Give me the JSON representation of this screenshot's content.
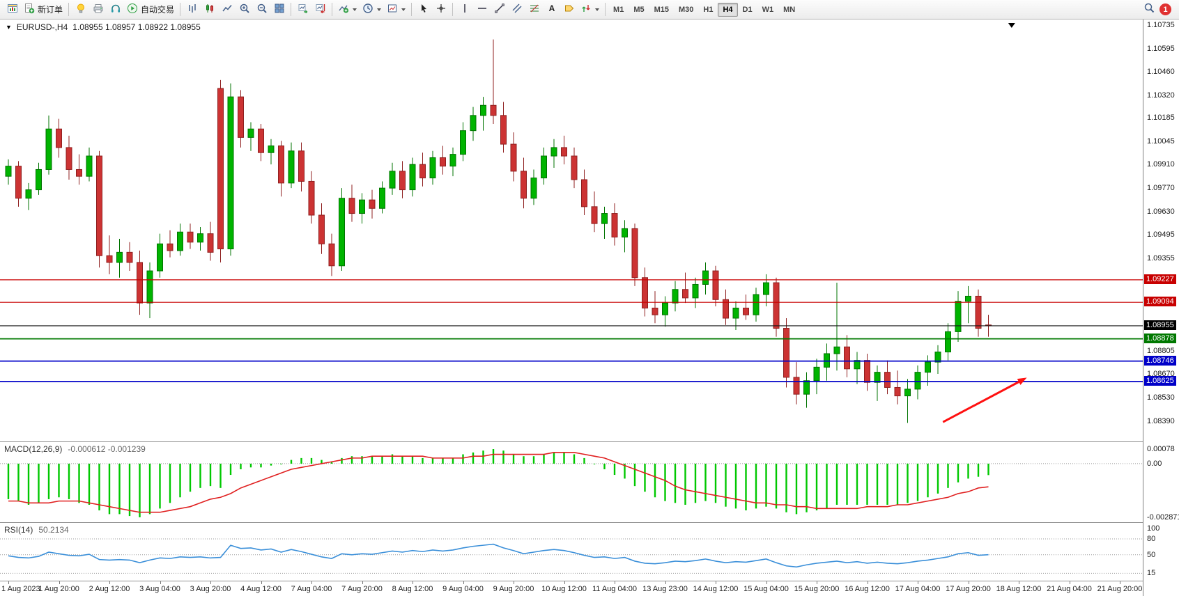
{
  "toolbar": {
    "new_order_label": "新订单",
    "autotrade_label": "自动交易",
    "timeframes": [
      "M1",
      "M5",
      "M15",
      "M30",
      "H1",
      "H4",
      "D1",
      "W1",
      "MN"
    ],
    "active_timeframe": "H4",
    "notification_count": "1"
  },
  "icons": {
    "collapse_triangle": "▼"
  },
  "chart_header": {
    "symbol": "EURUSD-,H4",
    "ohlc": "1.08955 1.08957 1.08922 1.08955"
  },
  "chart_data": [
    {
      "type": "candlestick",
      "title": "EURUSD-,H4",
      "ylim": [
        1.0839,
        1.10735
      ],
      "up_color": "#00b400",
      "up_edge": "#007300",
      "down_color": "#cc3333",
      "down_edge": "#8f1f1f",
      "scale_labels": [
        "1.10735",
        "1.10595",
        "1.10460",
        "1.10320",
        "1.10185",
        "1.10045",
        "1.09910",
        "1.09770",
        "1.09630",
        "1.09495",
        "1.09355",
        "1.08805",
        "1.08670",
        "1.08530",
        "1.08390"
      ],
      "hlines": [
        {
          "price": 1.09227,
          "color": "#c80000",
          "width": 1.2,
          "label": "1.09227",
          "badge": "#c80000"
        },
        {
          "price": 1.09094,
          "color": "#c80000",
          "width": 1.2,
          "label": "1.09094",
          "badge": "#c80000"
        },
        {
          "price": 1.08955,
          "color": "#161616",
          "width": 1.1,
          "label": "1.08955",
          "badge": "#000000"
        },
        {
          "price": 1.08878,
          "color": "#007800",
          "width": 1.8,
          "label": "1.08878",
          "badge": "#007800"
        },
        {
          "price": 1.08746,
          "color": "#0000c8",
          "width": 1.8,
          "label": "1.08746",
          "badge": "#0000c8"
        },
        {
          "price": 1.08625,
          "color": "#0000c8",
          "width": 1.8,
          "label": "1.08625",
          "badge": "#0000c8"
        }
      ],
      "arrow": {
        "x1_slot": 92.5,
        "price1": 1.08385,
        "x2_slot": 100.8,
        "price2": 1.08648,
        "color": "#ff1010"
      },
      "shift_marker_slot": 99.3,
      "x_axis_labels": [
        "1 Aug 2023",
        "1 Aug 20:00",
        "2 Aug 12:00",
        "3 Aug 04:00",
        "3 Aug 20:00",
        "4 Aug 12:00",
        "7 Aug 04:00",
        "7 Aug 20:00",
        "8 Aug 12:00",
        "9 Aug 04:00",
        "9 Aug 20:00",
        "10 Aug 12:00",
        "11 Aug 04:00",
        "13 Aug 23:00",
        "14 Aug 12:00",
        "15 Aug 04:00",
        "15 Aug 20:00",
        "16 Aug 12:00",
        "17 Aug 04:00",
        "17 Aug 20:00",
        "18 Aug 12:00",
        "21 Aug 04:00",
        "21 Aug 20:00"
      ],
      "label_every_slots": 5,
      "candles": [
        [
          1.0984,
          1.0994,
          1.0979,
          1.099
        ],
        [
          1.099,
          1.0993,
          1.0966,
          1.0971
        ],
        [
          1.0971,
          1.098,
          1.0964,
          1.0976
        ],
        [
          1.0976,
          1.0992,
          1.0973,
          1.0988
        ],
        [
          1.0988,
          1.102,
          1.0985,
          1.1012
        ],
        [
          1.1012,
          1.1018,
          1.0995,
          1.1001
        ],
        [
          1.1001,
          1.1008,
          1.0982,
          1.0988
        ],
        [
          1.0988,
          1.0997,
          1.0979,
          1.0984
        ],
        [
          1.0984,
          1.1001,
          1.0981,
          1.0996
        ],
        [
          1.0996,
          1.0999,
          1.093,
          1.0937
        ],
        [
          1.0937,
          1.0949,
          1.0926,
          1.0933
        ],
        [
          1.0933,
          1.0947,
          1.0924,
          1.0939
        ],
        [
          1.0939,
          1.0945,
          1.0928,
          1.0933
        ],
        [
          1.0933,
          1.094,
          1.0902,
          1.0909
        ],
        [
          1.0909,
          1.0933,
          1.09,
          1.0928
        ],
        [
          1.0928,
          1.095,
          1.0924,
          1.0944
        ],
        [
          1.0944,
          1.0952,
          1.0936,
          1.094
        ],
        [
          1.094,
          1.0956,
          1.0937,
          1.0951
        ],
        [
          1.0951,
          1.0956,
          1.0941,
          1.0945
        ],
        [
          1.0945,
          1.0954,
          1.094,
          1.095
        ],
        [
          1.095,
          1.0957,
          1.0934,
          1.0939
        ],
        [
          1.1036,
          1.1041,
          1.0933,
          1.0941
        ],
        [
          1.0941,
          1.1039,
          1.0937,
          1.1031
        ],
        [
          1.1031,
          1.1035,
          1.1001,
          1.1007
        ],
        [
          1.1007,
          1.1016,
          1.0999,
          1.1012
        ],
        [
          1.1012,
          1.1015,
          1.0993,
          1.0998
        ],
        [
          1.0998,
          1.1006,
          1.0991,
          1.1002
        ],
        [
          1.1002,
          1.1005,
          1.0972,
          1.098
        ],
        [
          1.098,
          1.1004,
          1.0977,
          1.0999
        ],
        [
          1.0999,
          1.1004,
          1.0975,
          1.0981
        ],
        [
          1.0981,
          1.0987,
          1.0956,
          1.0961
        ],
        [
          1.0961,
          1.0968,
          1.0938,
          1.0944
        ],
        [
          1.0944,
          1.095,
          1.0925,
          1.0931
        ],
        [
          1.0931,
          1.0977,
          1.0928,
          1.0971
        ],
        [
          1.0971,
          1.0979,
          1.0957,
          1.0962
        ],
        [
          1.0962,
          1.0974,
          1.0956,
          1.097
        ],
        [
          1.097,
          1.0976,
          1.0959,
          1.0965
        ],
        [
          1.0965,
          1.0981,
          1.0962,
          1.0977
        ],
        [
          1.0977,
          1.0992,
          1.0973,
          1.0987
        ],
        [
          1.0987,
          1.0993,
          1.0971,
          1.0976
        ],
        [
          1.0976,
          1.0995,
          1.0972,
          1.0991
        ],
        [
          1.0991,
          1.0998,
          1.0978,
          1.0983
        ],
        [
          1.0983,
          1.0999,
          1.0979,
          1.0995
        ],
        [
          1.0995,
          1.1002,
          1.0985,
          1.099
        ],
        [
          1.099,
          1.1001,
          1.0984,
          1.0997
        ],
        [
          1.0997,
          1.1016,
          1.0993,
          1.1011
        ],
        [
          1.1011,
          1.1025,
          1.1005,
          1.102
        ],
        [
          1.102,
          1.1031,
          1.1011,
          1.1026
        ],
        [
          1.1026,
          1.1065,
          1.1015,
          1.102
        ],
        [
          1.102,
          1.1028,
          1.0998,
          1.1003
        ],
        [
          1.1003,
          1.101,
          1.0981,
          1.0987
        ],
        [
          1.0987,
          1.0995,
          1.0965,
          1.0971
        ],
        [
          1.0971,
          1.0988,
          1.0967,
          1.0983
        ],
        [
          1.0983,
          1.1001,
          1.0979,
          1.0996
        ],
        [
          1.0996,
          1.1006,
          1.0989,
          1.1001
        ],
        [
          1.1001,
          1.1008,
          1.0991,
          1.0996
        ],
        [
          1.0996,
          1.1001,
          1.0977,
          1.0982
        ],
        [
          1.0982,
          1.0988,
          1.0961,
          1.0966
        ],
        [
          1.0966,
          1.0975,
          1.0951,
          1.0956
        ],
        [
          1.0956,
          1.0966,
          1.0947,
          1.0962
        ],
        [
          1.0962,
          1.0968,
          1.0943,
          1.0948
        ],
        [
          1.0948,
          1.0958,
          1.0939,
          1.0953
        ],
        [
          1.0953,
          1.0956,
          1.0919,
          1.0924
        ],
        [
          1.0924,
          1.093,
          1.0901,
          1.0906
        ],
        [
          1.0906,
          1.0916,
          1.0897,
          1.0902
        ],
        [
          1.0902,
          1.0913,
          1.0895,
          1.0909
        ],
        [
          1.0909,
          1.0922,
          1.0904,
          1.0917
        ],
        [
          1.0917,
          1.0927,
          1.0909,
          1.0912
        ],
        [
          1.0912,
          1.0924,
          1.0906,
          1.092
        ],
        [
          1.092,
          1.0933,
          1.0914,
          1.0928
        ],
        [
          1.0928,
          1.0931,
          1.0907,
          1.0911
        ],
        [
          1.0911,
          1.0917,
          1.0896,
          1.09
        ],
        [
          1.09,
          1.091,
          1.0893,
          1.0906
        ],
        [
          1.0906,
          1.0914,
          1.0899,
          1.0902
        ],
        [
          1.0902,
          1.0918,
          1.0898,
          1.0914
        ],
        [
          1.0914,
          1.0926,
          1.0907,
          1.0921
        ],
        [
          1.0921,
          1.0924,
          1.0889,
          1.0894
        ],
        [
          1.0894,
          1.09,
          1.0859,
          1.0865
        ],
        [
          1.0865,
          1.0874,
          1.0849,
          1.0855
        ],
        [
          1.0855,
          1.0868,
          1.0847,
          1.0863
        ],
        [
          1.0863,
          1.0876,
          1.0855,
          1.0871
        ],
        [
          1.0871,
          1.0885,
          1.0863,
          1.0879
        ],
        [
          1.0879,
          1.0921,
          1.0869,
          1.0883
        ],
        [
          1.0883,
          1.089,
          1.0865,
          1.087
        ],
        [
          1.087,
          1.088,
          1.0861,
          1.0875
        ],
        [
          1.0875,
          1.0879,
          1.0857,
          1.0862
        ],
        [
          1.0862,
          1.0872,
          1.0851,
          1.0868
        ],
        [
          1.0868,
          1.0875,
          1.0855,
          1.0859
        ],
        [
          1.0859,
          1.0869,
          1.0849,
          1.0854
        ],
        [
          1.0854,
          1.0864,
          1.0838,
          1.0858
        ],
        [
          1.0858,
          1.0872,
          1.0852,
          1.0868
        ],
        [
          1.0868,
          1.0878,
          1.086,
          1.0874
        ],
        [
          1.0874,
          1.0884,
          1.0867,
          1.088
        ],
        [
          1.088,
          1.0897,
          1.0875,
          1.0892
        ],
        [
          1.0892,
          1.0916,
          1.0886,
          1.091
        ],
        [
          1.091,
          1.0919,
          1.0897,
          1.0913
        ],
        [
          1.0913,
          1.0917,
          1.0889,
          1.0894
        ],
        [
          1.0896,
          1.0902,
          1.0889,
          1.08955
        ]
      ]
    },
    {
      "type": "bar",
      "title": "MACD(12,26,9)",
      "values_label": "-0.000612 -0.001239",
      "ylim": [
        -0.002871,
        0.00078
      ],
      "scale_labels": [
        "0.00078",
        "0.00",
        "-0.002871"
      ],
      "histogram_color": "#00c800",
      "signal_color": "#e02020",
      "histogram": [
        -0.0019,
        -0.002,
        -0.0022,
        -0.0021,
        -0.0019,
        -0.0018,
        -0.0019,
        -0.0021,
        -0.0022,
        -0.0025,
        -0.0027,
        -0.0027,
        -0.0028,
        -0.00287,
        -0.0027,
        -0.0024,
        -0.0021,
        -0.0018,
        -0.0015,
        -0.0013,
        -0.0012,
        -0.0013,
        -0.0006,
        -0.0003,
        -0.0002,
        -0.0002,
        -0.0001,
        0.0,
        0.0002,
        0.0003,
        0.0003,
        0.0002,
        0.0001,
        0.0003,
        0.0004,
        0.0004,
        0.0004,
        0.0004,
        0.0005,
        0.0004,
        0.0004,
        0.0003,
        0.0003,
        0.0003,
        0.0003,
        0.0005,
        0.0006,
        0.0007,
        0.00078,
        0.0007,
        0.0005,
        0.0004,
        0.0004,
        0.0005,
        0.0006,
        0.0006,
        0.0005,
        0.0003,
        0.0,
        -0.0003,
        -0.0006,
        -0.0008,
        -0.0012,
        -0.0015,
        -0.0018,
        -0.002,
        -0.0021,
        -0.0022,
        -0.0021,
        -0.002,
        -0.0021,
        -0.0023,
        -0.0024,
        -0.0025,
        -0.0024,
        -0.0023,
        -0.0024,
        -0.0026,
        -0.0027,
        -0.0026,
        -0.0025,
        -0.0024,
        -0.0022,
        -0.0022,
        -0.0022,
        -0.0022,
        -0.0022,
        -0.0022,
        -0.0022,
        -0.0021,
        -0.002,
        -0.0018,
        -0.0016,
        -0.0013,
        -0.001,
        -0.0008,
        -0.0007,
        -0.000612
      ],
      "signal": [
        -0.002,
        -0.002,
        -0.0021,
        -0.0021,
        -0.0021,
        -0.002,
        -0.002,
        -0.002,
        -0.0021,
        -0.0022,
        -0.0023,
        -0.0024,
        -0.0025,
        -0.0026,
        -0.0026,
        -0.0026,
        -0.0025,
        -0.0024,
        -0.0023,
        -0.0021,
        -0.0019,
        -0.0018,
        -0.0016,
        -0.0013,
        -0.0011,
        -0.0009,
        -0.0007,
        -0.0005,
        -0.0003,
        -0.0002,
        -0.0001,
        0.0,
        0.0001,
        0.0002,
        0.0003,
        0.0003,
        0.0004,
        0.0004,
        0.0004,
        0.0004,
        0.0004,
        0.0004,
        0.0003,
        0.0003,
        0.0003,
        0.0003,
        0.0004,
        0.0004,
        0.0005,
        0.0005,
        0.0005,
        0.0005,
        0.0005,
        0.0005,
        0.0006,
        0.0006,
        0.0006,
        0.0005,
        0.0004,
        0.0003,
        0.0001,
        -0.0001,
        -0.0003,
        -0.0005,
        -0.0007,
        -0.0009,
        -0.0012,
        -0.0014,
        -0.0015,
        -0.0016,
        -0.0017,
        -0.0018,
        -0.0019,
        -0.002,
        -0.0021,
        -0.0021,
        -0.0022,
        -0.0022,
        -0.0023,
        -0.0023,
        -0.0024,
        -0.0024,
        -0.0024,
        -0.0024,
        -0.0024,
        -0.0023,
        -0.0023,
        -0.0023,
        -0.0022,
        -0.0022,
        -0.0021,
        -0.002,
        -0.0019,
        -0.0018,
        -0.0016,
        -0.0015,
        -0.0013,
        -0.001239
      ]
    },
    {
      "type": "line",
      "title": "RSI(14)",
      "value_label": "50.2134",
      "ylim": [
        5,
        105
      ],
      "levels": [
        80,
        50,
        15
      ],
      "scale_labels": [
        "100",
        "80",
        "50",
        "15"
      ],
      "line_color": "#3a8fd9",
      "values": [
        48,
        45,
        44,
        47,
        55,
        52,
        49,
        48,
        51,
        41,
        40,
        41,
        40,
        35,
        40,
        44,
        43,
        46,
        45,
        46,
        44,
        45,
        68,
        62,
        63,
        59,
        61,
        55,
        60,
        56,
        51,
        46,
        43,
        52,
        50,
        52,
        51,
        54,
        57,
        55,
        58,
        56,
        59,
        57,
        59,
        63,
        66,
        68,
        70,
        63,
        58,
        52,
        55,
        58,
        60,
        58,
        54,
        49,
        45,
        46,
        43,
        45,
        38,
        34,
        33,
        35,
        38,
        37,
        39,
        42,
        38,
        35,
        37,
        36,
        39,
        42,
        35,
        29,
        27,
        31,
        34,
        36,
        38,
        35,
        37,
        34,
        36,
        34,
        33,
        35,
        38,
        40,
        43,
        46,
        52,
        54,
        49,
        50.21
      ]
    }
  ]
}
